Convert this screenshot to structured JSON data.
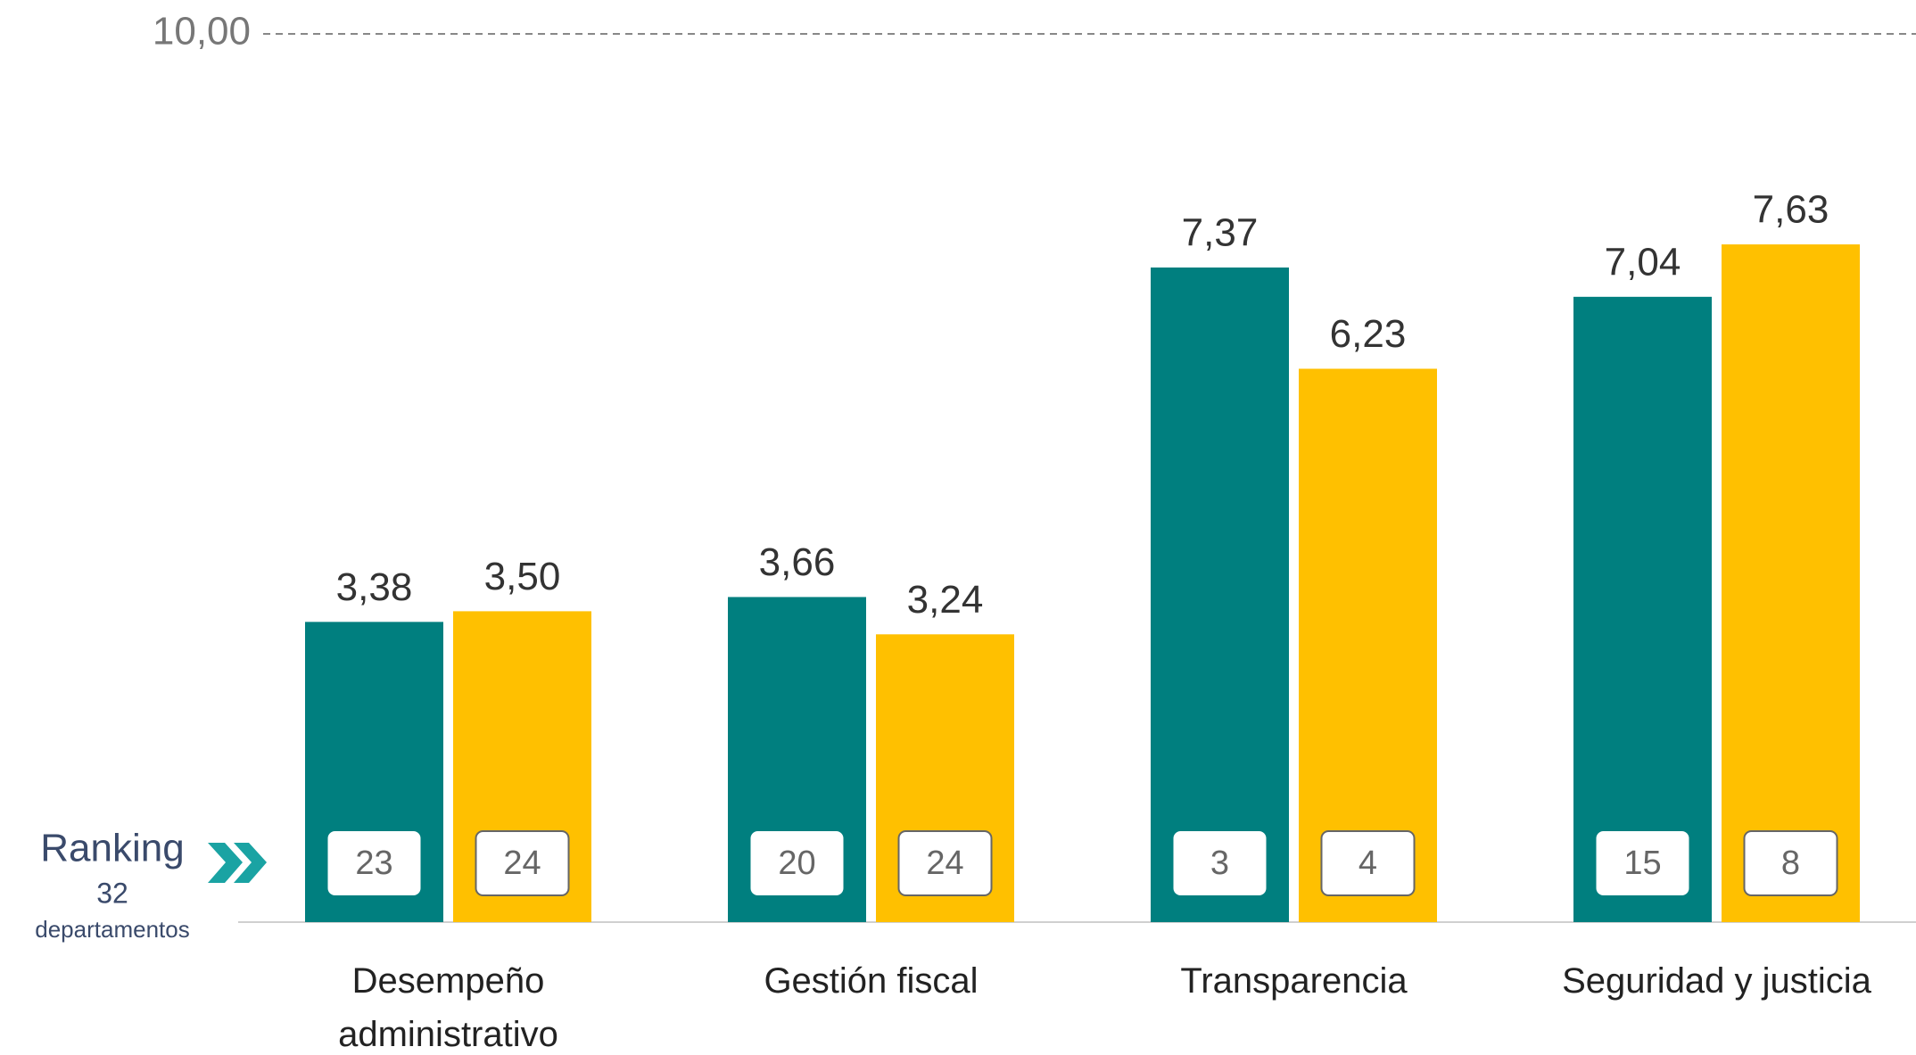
{
  "chart_data": {
    "type": "bar",
    "categories": [
      "Desempeño administrativo",
      "Gestión fiscal",
      "Transparencia",
      "Seguridad y justicia"
    ],
    "series": [
      {
        "color": "#007f7f",
        "values": [
          3.38,
          3.66,
          7.37,
          7.04
        ],
        "value_labels": [
          "3,38",
          "3,66",
          "7,37",
          "7,04"
        ],
        "ranks": [
          23,
          20,
          3,
          15
        ]
      },
      {
        "color": "#ffc000",
        "values": [
          3.5,
          3.24,
          6.23,
          7.63
        ],
        "value_labels": [
          "3,50",
          "3,24",
          "6,23",
          "7,63"
        ],
        "ranks": [
          24,
          24,
          4,
          8
        ]
      }
    ],
    "ylim": [
      0,
      10
    ],
    "yticks": [
      {
        "value": 10,
        "label": "10,00"
      }
    ],
    "grid": true,
    "ranking_label": {
      "title": "Ranking",
      "count": 32,
      "unit": "departamentos"
    }
  }
}
